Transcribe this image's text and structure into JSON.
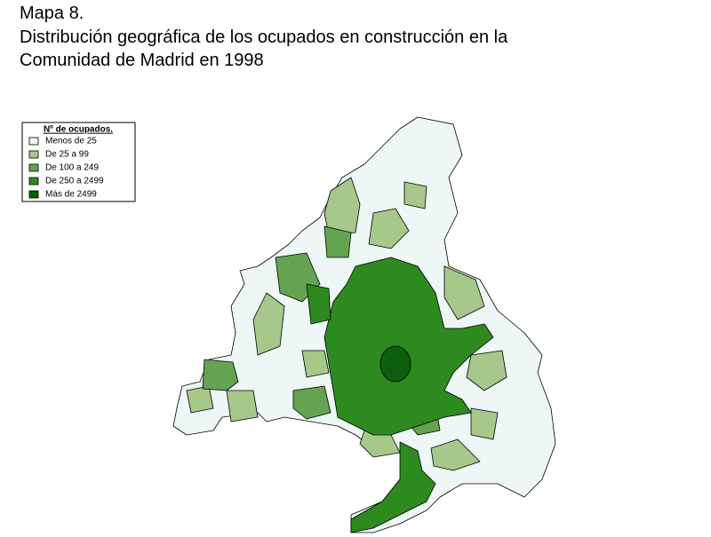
{
  "header": {
    "lines": [
      "Mapa 8.",
      "Distribución geográfica de los ocupados en construcción en la",
      "Comunidad de Madrid en 1998"
    ]
  },
  "legend": {
    "title": "Nº de ocupados.",
    "items": [
      {
        "label": "Menos de 25",
        "color": "#eef6f6"
      },
      {
        "label": "De 25 a 99",
        "color": "#a6c88a"
      },
      {
        "label": "De 100 a 249",
        "color": "#64a450"
      },
      {
        "label": "De 250 a 2499",
        "color": "#2d8a1e"
      },
      {
        "label": "Más de 2499",
        "color": "#0d5e0d"
      }
    ]
  }
}
